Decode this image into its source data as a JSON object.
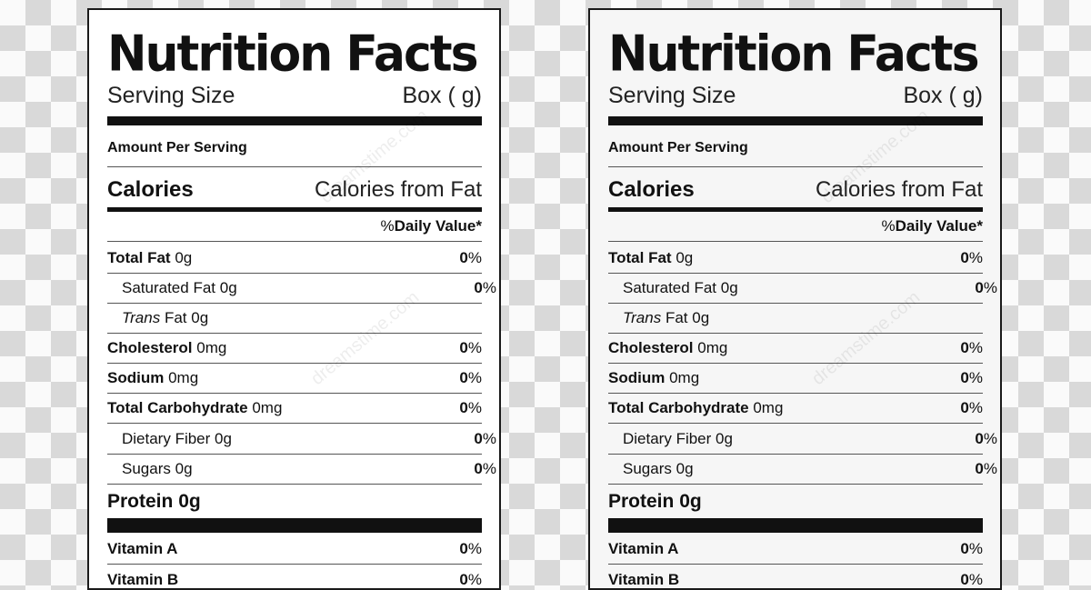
{
  "label": {
    "title": "Nutrition Facts",
    "serving_size_label": "Serving Size",
    "serving_size_value": "Box ( g)",
    "amount_per_serving": "Amount Per Serving",
    "calories": "Calories",
    "calories_from_fat": "Calories from Fat",
    "daily_value_percent": "%",
    "daily_value_text": "Daily Value*",
    "rows": {
      "total_fat": {
        "name": "Total Fat",
        "amount": "0g",
        "pct_value": "0",
        "pct_symbol": "%"
      },
      "saturated_fat": {
        "name": "Saturated Fat",
        "amount": "0g",
        "pct_value": "0",
        "pct_symbol": "%"
      },
      "trans_fat": {
        "name": "Trans",
        "suffix": "Fat",
        "amount": "0g"
      },
      "cholesterol": {
        "name": "Cholesterol",
        "amount": "0mg",
        "pct_value": "0",
        "pct_symbol": "%"
      },
      "sodium": {
        "name": "Sodium",
        "amount": "0mg",
        "pct_value": "0",
        "pct_symbol": "%"
      },
      "total_carbohydrate": {
        "name": "Total Carbohydrate",
        "amount": "0mg",
        "pct_value": "0",
        "pct_symbol": "%"
      },
      "dietary_fiber": {
        "name": "Dietary Fiber",
        "amount": "0g",
        "pct_value": "0",
        "pct_symbol": "%"
      },
      "sugars": {
        "name": "Sugars",
        "amount": "0g",
        "pct_value": "0",
        "pct_symbol": "%"
      },
      "protein": {
        "name": "Protein",
        "amount": "0g"
      },
      "vitamin_a": {
        "name": "Vitamin A",
        "pct_value": "0",
        "pct_symbol": "%"
      },
      "vitamin_b": {
        "name": "Vitamin B",
        "pct_value": "0",
        "pct_symbol": "%"
      }
    }
  },
  "watermark": "dreamstime.com"
}
